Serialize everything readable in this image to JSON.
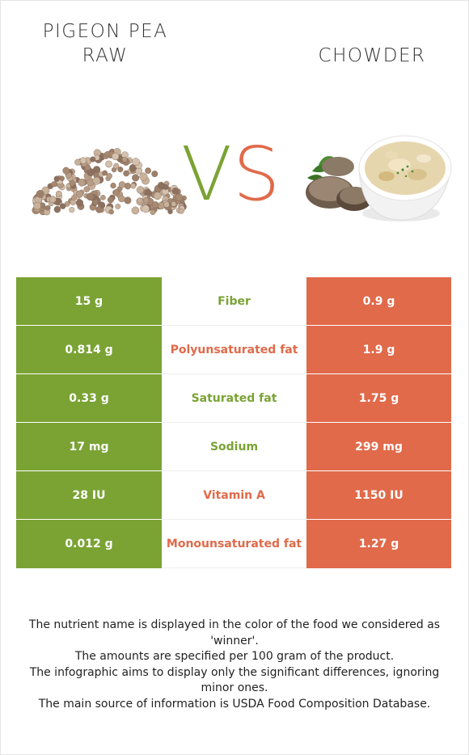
{
  "titles": {
    "left": "PIGEON PEA RAW",
    "right": "CHOWDER"
  },
  "vs": {
    "v": "V",
    "s": "S"
  },
  "colors": {
    "left": "#7aa334",
    "right": "#e06a4a"
  },
  "rows": [
    {
      "nutrient": "Fiber",
      "left": "15 g",
      "right": "0.9 g",
      "winner": "left"
    },
    {
      "nutrient": "Polyunsaturated fat",
      "left": "0.814 g",
      "right": "1.9 g",
      "winner": "right"
    },
    {
      "nutrient": "Saturated fat",
      "left": "0.33 g",
      "right": "1.75 g",
      "winner": "left"
    },
    {
      "nutrient": "Sodium",
      "left": "17 mg",
      "right": "299 mg",
      "winner": "left"
    },
    {
      "nutrient": "Vitamin A",
      "left": "28 IU",
      "right": "1150 IU",
      "winner": "right"
    },
    {
      "nutrient": "Monounsaturated fat",
      "left": "0.012 g",
      "right": "1.27 g",
      "winner": "right"
    }
  ],
  "footnotes": [
    "The nutrient name is displayed in the color of the food we considered as 'winner'.",
    "The amounts are specified per 100 gram of the product.",
    "The infographic aims to display only the significant differences, ignoring minor ones.",
    "The main source of information is USDA Food Composition Database."
  ]
}
